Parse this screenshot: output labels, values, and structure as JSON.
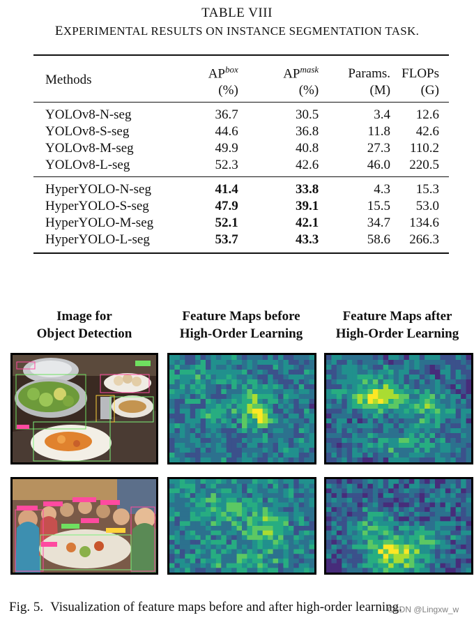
{
  "table": {
    "number": "TABLE VIII",
    "caption_first": "E",
    "caption_rest": "XPERIMENTAL RESULTS ON INSTANCE SEGMENTATION TASK.",
    "headers": {
      "methods": "Methods",
      "ap_box": "AP",
      "ap_box_sup": "box",
      "ap_box_unit": "(%)",
      "ap_mask": "AP",
      "ap_mask_sup": "mask",
      "ap_mask_unit": "(%)",
      "params": "Params.",
      "params_unit": "(M)",
      "flops": "FLOPs",
      "flops_unit": "(G)"
    },
    "rows": [
      {
        "method": "YOLOv8-N-seg",
        "ap_box": "36.7",
        "ap_mask": "30.5",
        "params": "3.4",
        "flops": "12.6"
      },
      {
        "method": "YOLOv8-S-seg",
        "ap_box": "44.6",
        "ap_mask": "36.8",
        "params": "11.8",
        "flops": "42.6"
      },
      {
        "method": "YOLOv8-M-seg",
        "ap_box": "49.9",
        "ap_mask": "40.8",
        "params": "27.3",
        "flops": "110.2"
      },
      {
        "method": "YOLOv8-L-seg",
        "ap_box": "52.3",
        "ap_mask": "42.6",
        "params": "46.0",
        "flops": "220.5"
      },
      {
        "method": "HyperYOLO-N-seg",
        "ap_box": "41.4",
        "ap_mask": "33.8",
        "params": "4.3",
        "flops": "15.3"
      },
      {
        "method": "HyperYOLO-S-seg",
        "ap_box": "47.9",
        "ap_mask": "39.1",
        "params": "15.5",
        "flops": "53.0"
      },
      {
        "method": "HyperYOLO-M-seg",
        "ap_box": "52.1",
        "ap_mask": "42.1",
        "params": "34.7",
        "flops": "134.6"
      },
      {
        "method": "HyperYOLO-L-seg",
        "ap_box": "53.7",
        "ap_mask": "43.3",
        "params": "58.6",
        "flops": "266.3"
      }
    ]
  },
  "figure": {
    "col1": [
      "Image for",
      "Object Detection"
    ],
    "col2": [
      "Feature Maps before",
      "High-Order Learning"
    ],
    "col3": [
      "Feature Maps after",
      "High-Order Learning"
    ],
    "caption_label": "Fig. 5.",
    "caption_text": "Visualization of feature maps before and after high-order learning."
  },
  "watermark": "CSDN @Lingxw_w",
  "colors": {
    "viridis": [
      "#440154",
      "#472c7a",
      "#3b518b",
      "#2c718e",
      "#21908d",
      "#27ad81",
      "#5cc863",
      "#aadc32",
      "#fde725"
    ]
  }
}
